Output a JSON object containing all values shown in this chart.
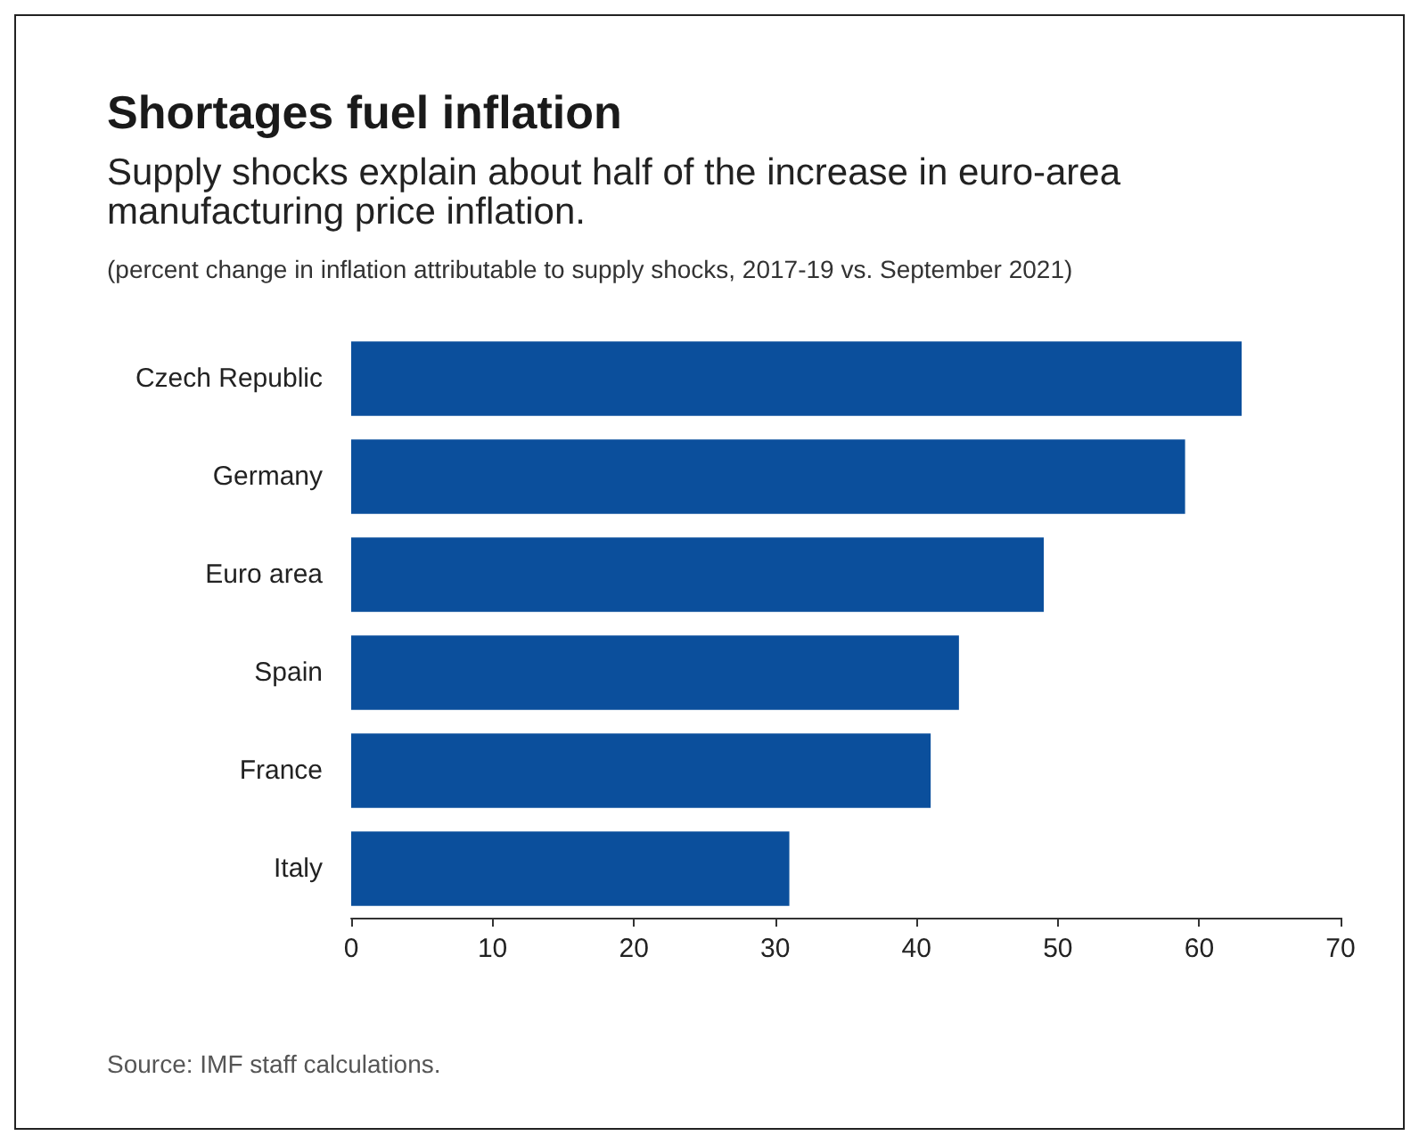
{
  "chart_data": {
    "type": "bar",
    "orientation": "horizontal",
    "title": "Shortages fuel inflation",
    "subtitle": "Supply shocks explain about half of the increase in euro-area manufacturing price inflation.",
    "annotations": [
      "(percent change in inflation attributable to supply shocks, 2017-19 vs. September 2021)",
      "Source: IMF staff calculations."
    ],
    "categories": [
      "Czech Republic",
      "Germany",
      "Euro area",
      "Spain",
      "France",
      "Italy"
    ],
    "values": [
      63,
      59,
      49,
      43,
      41,
      31
    ],
    "color": "#0b4f9c",
    "xlim": [
      0,
      70
    ],
    "xticks": [
      0,
      10,
      20,
      30,
      40,
      50,
      60,
      70
    ]
  }
}
